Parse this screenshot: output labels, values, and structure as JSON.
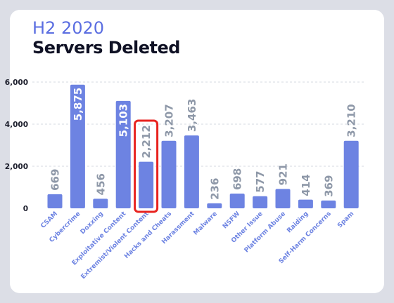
{
  "header": {
    "subtitle": "H2 2020",
    "title": "Servers Deleted"
  },
  "colors": {
    "bar": "#6d83e2",
    "label_light": "#8e98a8",
    "label_inside": "#ffffff",
    "category": "#6d83e2",
    "highlight": "#e8231f",
    "grid": "#d6d9e0",
    "tick": "#1c1e2c"
  },
  "chart_data": {
    "type": "bar",
    "title": "Servers Deleted",
    "subtitle": "H2 2020",
    "ylim": [
      0,
      6000
    ],
    "yticks": [
      0,
      2000,
      4000,
      6000
    ],
    "ytick_labels": [
      "0",
      "2,000",
      "4,000",
      "6,000"
    ],
    "grid": "dashed horizontal",
    "categories": [
      "CSAM",
      "Cybercrime",
      "Doxxing",
      "Exploitative Content",
      "Extremist/Violent Content",
      "Hacks and Cheats",
      "Harassment",
      "Malware",
      "NSFW",
      "Other Issue",
      "Platform Abuse",
      "Raiding",
      "Self-Harm Concerns",
      "Spam"
    ],
    "values": [
      669,
      5875,
      456,
      5103,
      2212,
      3207,
      3463,
      236,
      698,
      577,
      921,
      414,
      369,
      3210
    ],
    "value_labels": [
      "669",
      "5,875",
      "456",
      "5,103",
      "2,212",
      "3,207",
      "3,463",
      "236",
      "698",
      "577",
      "921",
      "414",
      "369",
      "3,210"
    ],
    "highlighted_category": "Extremist/Violent Content"
  }
}
